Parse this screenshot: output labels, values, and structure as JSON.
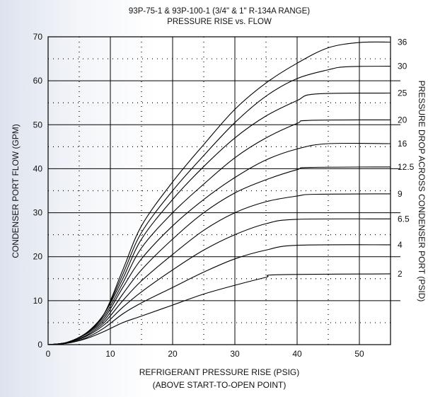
{
  "chart_data": {
    "type": "line",
    "title": "93P-75-1 & 93P-100-1 (3/4\" & 1\" R-134A RANGE)",
    "subtitle": "PRESSURE RISE vs. FLOW",
    "xlabel": "REFRIGERANT PRESSURE RISE (PSIG)",
    "xlabel2": "(ABOVE START-TO-OPEN POINT)",
    "ylabel": "CONDENSER PORT FLOW (GPM)",
    "y2label": "PRESSURE DROP ACROSS CONDENSER PORT (PSID)",
    "xlim": [
      0,
      55
    ],
    "ylim": [
      0,
      70
    ],
    "x_ticks": [
      "0",
      "10",
      "20",
      "30",
      "40",
      "50"
    ],
    "y_ticks": [
      "0",
      "10",
      "20",
      "30",
      "40",
      "50",
      "60",
      "70"
    ],
    "grid": true,
    "series": [
      {
        "name": "36",
        "points": [
          [
            0,
            0
          ],
          [
            3,
            0.5
          ],
          [
            6,
            2.5
          ],
          [
            9,
            7
          ],
          [
            12,
            17
          ],
          [
            15,
            27
          ],
          [
            20,
            37
          ],
          [
            25,
            45.5
          ],
          [
            30,
            53.5
          ],
          [
            35,
            59.5
          ],
          [
            40,
            64
          ],
          [
            45,
            67.5
          ],
          [
            50,
            68.7
          ],
          [
            55,
            68.8
          ]
        ]
      },
      {
        "name": "30",
        "points": [
          [
            0,
            0
          ],
          [
            3,
            0.5
          ],
          [
            6,
            2.5
          ],
          [
            9,
            7
          ],
          [
            12,
            16
          ],
          [
            15,
            25.5
          ],
          [
            20,
            35
          ],
          [
            25,
            43
          ],
          [
            30,
            50.5
          ],
          [
            35,
            56.5
          ],
          [
            40,
            60.5
          ],
          [
            45,
            62.5
          ],
          [
            48,
            63.2
          ],
          [
            55,
            63.3
          ]
        ]
      },
      {
        "name": "25",
        "points": [
          [
            0,
            0
          ],
          [
            3,
            0.5
          ],
          [
            6,
            2.5
          ],
          [
            9,
            7
          ],
          [
            12,
            15
          ],
          [
            15,
            24
          ],
          [
            20,
            33
          ],
          [
            25,
            40.5
          ],
          [
            30,
            47
          ],
          [
            35,
            52
          ],
          [
            40,
            55.5
          ],
          [
            43,
            57
          ],
          [
            55,
            57.2
          ]
        ]
      },
      {
        "name": "20",
        "points": [
          [
            0,
            0
          ],
          [
            3,
            0.5
          ],
          [
            6,
            2.5
          ],
          [
            9,
            6.5
          ],
          [
            12,
            14
          ],
          [
            15,
            22
          ],
          [
            20,
            30
          ],
          [
            25,
            36.5
          ],
          [
            30,
            42.5
          ],
          [
            35,
            47
          ],
          [
            40,
            50.3
          ],
          [
            42,
            51
          ],
          [
            55,
            51.1
          ]
        ]
      },
      {
        "name": "16",
        "points": [
          [
            0,
            0
          ],
          [
            3,
            0.5
          ],
          [
            6,
            2.5
          ],
          [
            9,
            6
          ],
          [
            12,
            13
          ],
          [
            15,
            19.5
          ],
          [
            20,
            27
          ],
          [
            25,
            33
          ],
          [
            30,
            38
          ],
          [
            35,
            42
          ],
          [
            40,
            44.5
          ],
          [
            45,
            45.7
          ],
          [
            55,
            45.7
          ]
        ]
      },
      {
        "name": "12.5",
        "points": [
          [
            0,
            0
          ],
          [
            3,
            0.5
          ],
          [
            6,
            2.3
          ],
          [
            9,
            5.5
          ],
          [
            12,
            11.5
          ],
          [
            15,
            17
          ],
          [
            20,
            24
          ],
          [
            25,
            30
          ],
          [
            30,
            34.5
          ],
          [
            35,
            37.5
          ],
          [
            40,
            39.8
          ],
          [
            42,
            40.3
          ],
          [
            55,
            40.4
          ]
        ]
      },
      {
        "name": "9",
        "points": [
          [
            0,
            0
          ],
          [
            3,
            0.4
          ],
          [
            6,
            2
          ],
          [
            9,
            5
          ],
          [
            12,
            10
          ],
          [
            15,
            14.5
          ],
          [
            20,
            20.5
          ],
          [
            25,
            26
          ],
          [
            30,
            30
          ],
          [
            35,
            32.5
          ],
          [
            40,
            33.8
          ],
          [
            43,
            34.2
          ],
          [
            55,
            34.3
          ]
        ]
      },
      {
        "name": "6.5",
        "points": [
          [
            0,
            0
          ],
          [
            3,
            0.4
          ],
          [
            6,
            1.8
          ],
          [
            9,
            4.5
          ],
          [
            12,
            8.5
          ],
          [
            15,
            12
          ],
          [
            20,
            17
          ],
          [
            25,
            21.5
          ],
          [
            30,
            25
          ],
          [
            35,
            27.5
          ],
          [
            40,
            28.5
          ],
          [
            55,
            28.6
          ]
        ]
      },
      {
        "name": "4",
        "points": [
          [
            0,
            0
          ],
          [
            3,
            0.3
          ],
          [
            6,
            1.5
          ],
          [
            9,
            3.8
          ],
          [
            12,
            7
          ],
          [
            15,
            9.5
          ],
          [
            20,
            13
          ],
          [
            25,
            16.5
          ],
          [
            30,
            19.5
          ],
          [
            35,
            21.5
          ],
          [
            40,
            22.6
          ],
          [
            55,
            22.7
          ]
        ]
      },
      {
        "name": "2",
        "points": [
          [
            0,
            0
          ],
          [
            3,
            0.3
          ],
          [
            6,
            1.3
          ],
          [
            9,
            3
          ],
          [
            12,
            5
          ],
          [
            15,
            6.5
          ],
          [
            20,
            9
          ],
          [
            25,
            11.5
          ],
          [
            30,
            13.5
          ],
          [
            35,
            15.3
          ],
          [
            37,
            15.9
          ],
          [
            55,
            16.1
          ]
        ]
      }
    ]
  }
}
